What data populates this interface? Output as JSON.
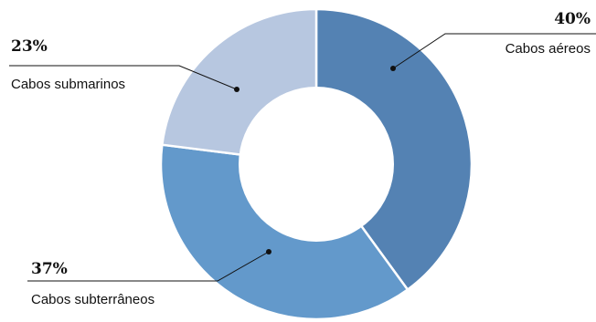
{
  "chart_data": {
    "type": "pie",
    "donut": true,
    "unit": "%",
    "slices": [
      {
        "label": "Cabos aéreos",
        "value": 40,
        "value_label": "40%",
        "color": "#5482b3"
      },
      {
        "label": "Cabos subterrâneos",
        "value": 37,
        "value_label": "37%",
        "color": "#6399cb"
      },
      {
        "label": "Cabos submarinos",
        "value": 23,
        "value_label": "23%",
        "color": "#b7c7e0"
      }
    ],
    "legend": "none"
  }
}
